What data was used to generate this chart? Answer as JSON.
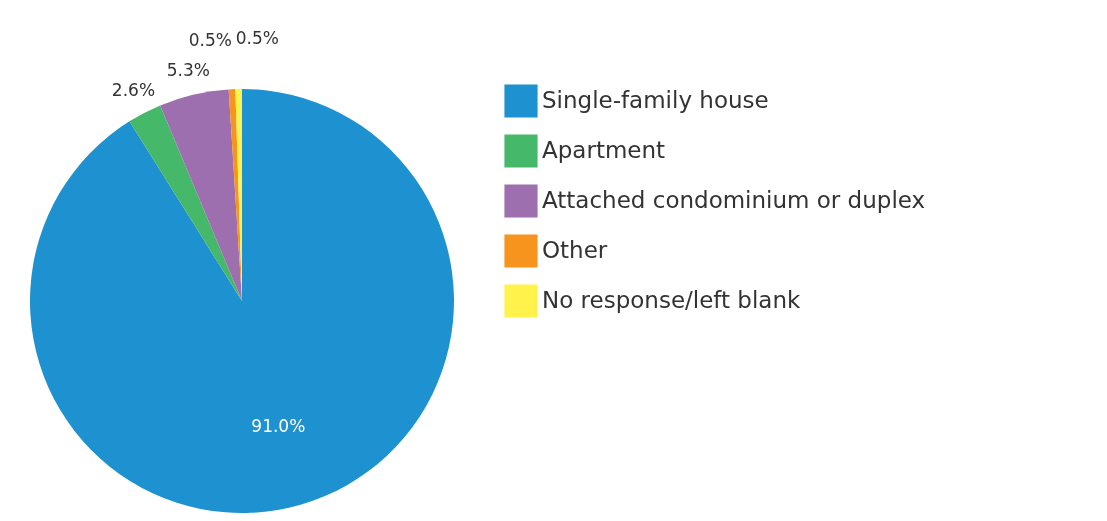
{
  "chart_data": {
    "type": "pie",
    "categories": [
      "Single-family house",
      "Apartment",
      "Attached condominium or duplex",
      "Other",
      "No response/left blank"
    ],
    "values": [
      91.0,
      2.6,
      5.3,
      0.5,
      0.5
    ],
    "colors": [
      "#1e91d0",
      "#46b86a",
      "#9d6faf",
      "#f7941d",
      "#fff24a"
    ],
    "value_labels": [
      "91.0%",
      "2.6%",
      "5.3%",
      "0.5%",
      "0.5%"
    ],
    "legend": "right"
  }
}
